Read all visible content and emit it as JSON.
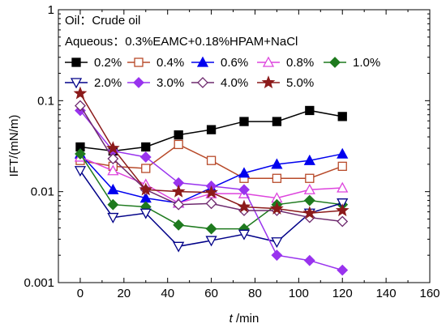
{
  "chart_data": {
    "type": "line",
    "title": "",
    "xlabel_italic": "t",
    "xlabel_unit": " /min",
    "ylabel": "IFT/(mN/m)",
    "yscale": "log",
    "xlim": [
      -10,
      160
    ],
    "ylim": [
      0.001,
      1
    ],
    "xticks": [
      0,
      20,
      40,
      60,
      80,
      100,
      120,
      140,
      160
    ],
    "yticks": [
      0.001,
      0.01,
      0.1,
      1
    ],
    "ytick_labels": [
      "0.001",
      "0.01",
      "0.1",
      "1"
    ],
    "grid": false,
    "legend_position": "top-left",
    "oil_label": "Oil：Crude oil",
    "aqueous_label": "Aqueous：0.3%EAMC+0.18%HPAM+NaCl",
    "series": [
      {
        "name": "0.2%",
        "marker": "square",
        "color": "#000000",
        "filled": true,
        "x": [
          0,
          15,
          30,
          45,
          60,
          75,
          90,
          105,
          120
        ],
        "y": [
          0.031,
          0.028,
          0.031,
          0.042,
          0.048,
          0.059,
          0.059,
          0.078,
          0.067
        ]
      },
      {
        "name": "0.4%",
        "marker": "square",
        "color": "#b84a2a",
        "filled": false,
        "x": [
          0,
          15,
          30,
          45,
          60,
          75,
          90,
          105,
          120
        ],
        "y": [
          0.022,
          0.019,
          0.018,
          0.033,
          0.022,
          0.014,
          0.014,
          0.014,
          0.019
        ]
      },
      {
        "name": "0.6%",
        "marker": "triangle-up",
        "color": "#0000ee",
        "filled": true,
        "x": [
          0,
          15,
          30,
          45,
          60,
          75,
          90,
          105,
          120
        ],
        "y": [
          0.026,
          0.0105,
          0.0085,
          0.0075,
          0.011,
          0.016,
          0.02,
          0.022,
          0.026
        ]
      },
      {
        "name": "0.8%",
        "marker": "triangle-up",
        "color": "#dd44dd",
        "filled": false,
        "x": [
          0,
          15,
          30,
          45,
          60,
          75,
          90,
          105,
          120
        ],
        "y": [
          0.024,
          0.017,
          0.012,
          0.0075,
          0.0095,
          0.0095,
          0.0085,
          0.0105,
          0.011
        ]
      },
      {
        "name": "1.0%",
        "marker": "diamond",
        "color": "#1e7a1e",
        "filled": true,
        "x": [
          0,
          15,
          30,
          45,
          60,
          75,
          90,
          105,
          120
        ],
        "y": [
          0.026,
          0.0072,
          0.0068,
          0.0043,
          0.0039,
          0.0039,
          0.0072,
          0.008,
          0.0072
        ]
      },
      {
        "name": "2.0%",
        "marker": "triangle-down",
        "color": "#000088",
        "filled": false,
        "x": [
          0,
          15,
          30,
          45,
          60,
          75,
          90,
          105,
          120
        ],
        "y": [
          0.017,
          0.0052,
          0.0058,
          0.0025,
          0.0029,
          0.0034,
          0.0028,
          0.0058,
          0.0075
        ]
      },
      {
        "name": "3.0%",
        "marker": "diamond",
        "color": "#9933ee",
        "filled": true,
        "x": [
          0,
          15,
          30,
          45,
          60,
          75,
          90,
          105,
          120
        ],
        "y": [
          0.078,
          0.028,
          0.024,
          0.0125,
          0.0115,
          0.0105,
          0.002,
          0.00175,
          0.00137
        ]
      },
      {
        "name": "4.0%",
        "marker": "diamond",
        "color": "#6e2a6e",
        "filled": false,
        "x": [
          0,
          15,
          30,
          45,
          60,
          75,
          90,
          105,
          120
        ],
        "y": [
          0.088,
          0.023,
          0.0105,
          0.0072,
          0.0074,
          0.0062,
          0.0062,
          0.0052,
          0.0047
        ]
      },
      {
        "name": "5.0%",
        "marker": "star",
        "color": "#8b1a1a",
        "filled": true,
        "x": [
          0,
          15,
          30,
          45,
          60,
          75,
          90,
          105,
          120
        ],
        "y": [
          0.12,
          0.03,
          0.0105,
          0.01,
          0.0098,
          0.0068,
          0.0065,
          0.0058,
          0.0062
        ]
      }
    ]
  }
}
